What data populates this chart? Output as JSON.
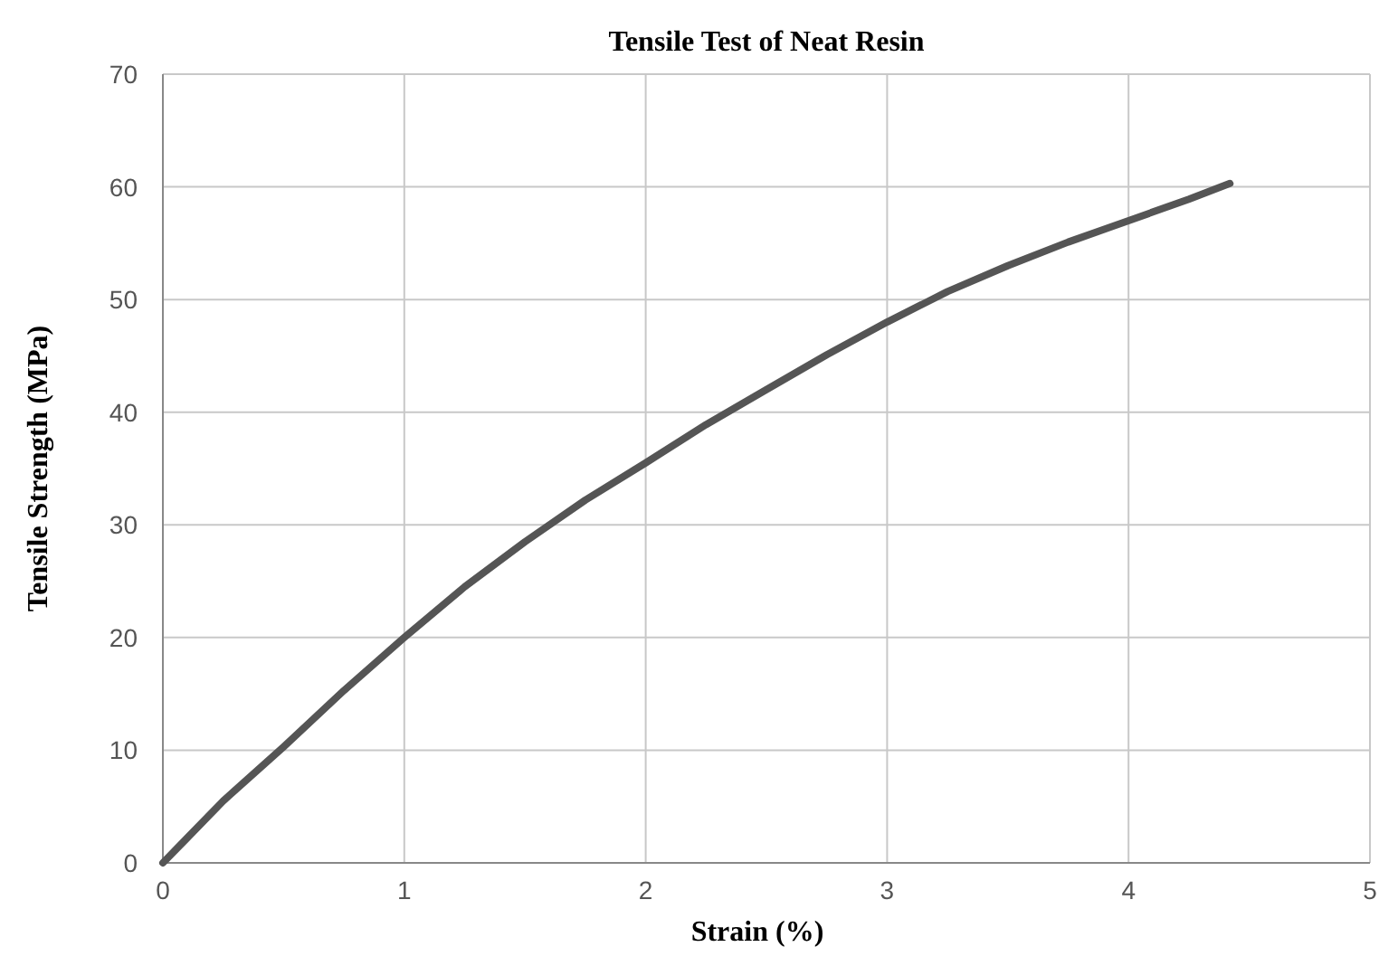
{
  "chart_data": {
    "type": "line",
    "title": "Tensile Test of Neat Resin",
    "xlabel": "Strain (%)",
    "ylabel": "Tensile Strength (MPa)",
    "x": [
      0,
      0.1,
      0.25,
      0.5,
      0.75,
      1,
      1.25,
      1.5,
      1.75,
      2,
      2.25,
      2.5,
      2.75,
      3,
      3.25,
      3.5,
      3.75,
      4,
      4.25,
      4.42
    ],
    "series": [
      {
        "color": "#555555",
        "values": [
          0,
          2.2,
          5.5,
          10.3,
          15.3,
          20,
          24.5,
          28.5,
          32.2,
          35.5,
          38.9,
          42,
          45.1,
          48,
          50.7,
          53,
          55.1,
          57,
          58.9,
          60.3
        ]
      }
    ],
    "xlim": [
      0,
      5
    ],
    "xticks": [
      0,
      1,
      2,
      3,
      4,
      5
    ],
    "ylim": [
      0,
      70
    ],
    "yticks": [
      0,
      10,
      20,
      30,
      40,
      50,
      60,
      70
    ],
    "grid": true,
    "marker": "none",
    "line_style": "solid"
  }
}
